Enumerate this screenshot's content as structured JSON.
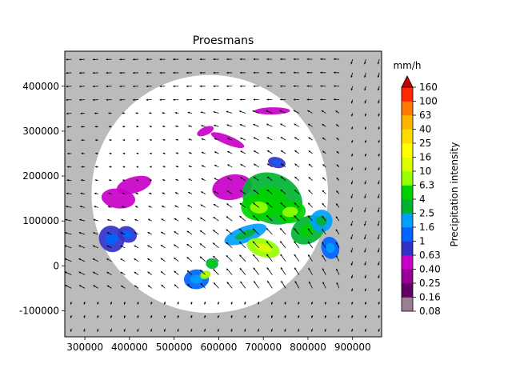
{
  "chart_data": {
    "type": "heatmap",
    "title": "Proesmans",
    "xlabel": "",
    "ylabel": "",
    "x_ticks": [
      300000,
      400000,
      500000,
      600000,
      700000,
      800000,
      900000
    ],
    "y_ticks": [
      -100000,
      0,
      100000,
      200000,
      300000,
      400000
    ],
    "xlim": [
      255000,
      965000
    ],
    "ylim": [
      -158000,
      478000
    ],
    "background_color": "#bbbbbb",
    "radar_domain_center": [
      580000,
      160000
    ],
    "radar_domain_radius": 265000,
    "motion_field": {
      "name": "",
      "grid_spacing": 30000,
      "description_visible": false
    },
    "colorbar": {
      "label": "Precipitation intensity",
      "unit_label": "mm/h",
      "extend": "max",
      "levels": [
        "0.08",
        "0.16",
        "0.25",
        "0.40",
        "0.63",
        "1",
        "1.6",
        "2.5",
        "4",
        "6.3",
        "10",
        "16",
        "25",
        "40",
        "63",
        "100",
        "160"
      ],
      "colors": [
        "#9c7e94",
        "#640064",
        "#960096",
        "#c800c8",
        "#3232c8",
        "#0064ff",
        "#00a0ff",
        "#00b432",
        "#00d200",
        "#96ff00",
        "#dcff00",
        "#ffff00",
        "#ffdc00",
        "#ffb400",
        "#ff7800",
        "#ff2800",
        "#c80000"
      ]
    },
    "precipitation_cells": [
      {
        "x": 360000,
        "y": 60000,
        "rx": 28000,
        "ry": 30000,
        "level": 4
      },
      {
        "x": 375000,
        "y": 150000,
        "rx": 38000,
        "ry": 22000,
        "level": 3
      },
      {
        "x": 410000,
        "y": 180000,
        "rx": 40000,
        "ry": 18000,
        "level": 3
      },
      {
        "x": 395000,
        "y": 70000,
        "rx": 22000,
        "ry": 18000,
        "level": 4
      },
      {
        "x": 550000,
        "y": -30000,
        "rx": 28000,
        "ry": 22000,
        "level": 5
      },
      {
        "x": 570000,
        "y": -20000,
        "rx": 12000,
        "ry": 9000,
        "level": 9
      },
      {
        "x": 585000,
        "y": 5000,
        "rx": 14000,
        "ry": 12000,
        "level": 7
      },
      {
        "x": 630000,
        "y": 175000,
        "rx": 45000,
        "ry": 28000,
        "level": 3
      },
      {
        "x": 720000,
        "y": 150000,
        "rx": 70000,
        "ry": 55000,
        "level": 7
      },
      {
        "x": 690000,
        "y": 130000,
        "rx": 40000,
        "ry": 30000,
        "level": 8
      },
      {
        "x": 660000,
        "y": 70000,
        "rx": 50000,
        "ry": 18000,
        "level": 6
      },
      {
        "x": 700000,
        "y": 40000,
        "rx": 38000,
        "ry": 20000,
        "level": 9
      },
      {
        "x": 760000,
        "y": 120000,
        "rx": 35000,
        "ry": 25000,
        "level": 8
      },
      {
        "x": 800000,
        "y": 80000,
        "rx": 40000,
        "ry": 30000,
        "level": 7
      },
      {
        "x": 830000,
        "y": 100000,
        "rx": 25000,
        "ry": 25000,
        "level": 6
      },
      {
        "x": 850000,
        "y": 40000,
        "rx": 20000,
        "ry": 25000,
        "level": 5
      },
      {
        "x": 620000,
        "y": 280000,
        "rx": 40000,
        "ry": 10000,
        "level": 3
      },
      {
        "x": 720000,
        "y": 345000,
        "rx": 40000,
        "ry": 8000,
        "level": 3
      },
      {
        "x": 570000,
        "y": 300000,
        "rx": 20000,
        "ry": 9000,
        "level": 3
      },
      {
        "x": 730000,
        "y": 230000,
        "rx": 20000,
        "ry": 12000,
        "level": 4
      }
    ]
  }
}
